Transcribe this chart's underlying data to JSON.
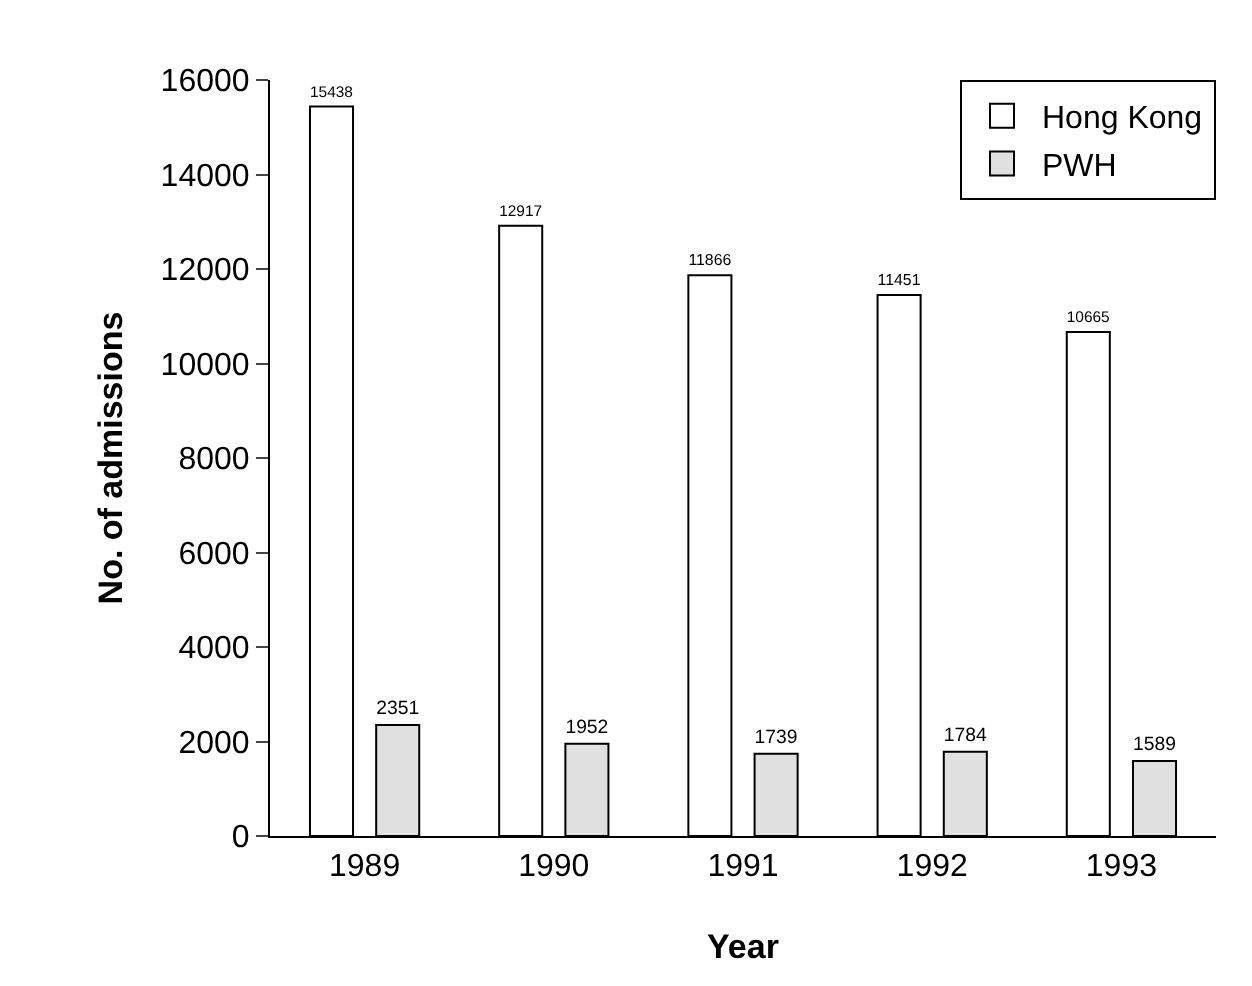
{
  "chart_data": {
    "type": "bar",
    "xlabel": "Year",
    "ylabel": "No. of admissions",
    "categories": [
      "1989",
      "1990",
      "1991",
      "1992",
      "1993"
    ],
    "series": [
      {
        "name": "Hong Kong",
        "color": "#ffffff",
        "values": [
          15438,
          12917,
          11866,
          11451,
          10665
        ]
      },
      {
        "name": "PWH",
        "color": "#e0e0e0",
        "values": [
          2351,
          1952,
          1739,
          1784,
          1589
        ]
      }
    ],
    "ylim": [
      0,
      16000
    ],
    "yticks": [
      0,
      2000,
      4000,
      6000,
      8000,
      10000,
      12000,
      14000,
      16000
    ],
    "data_labels": true,
    "grid": false,
    "legend": "top right"
  }
}
